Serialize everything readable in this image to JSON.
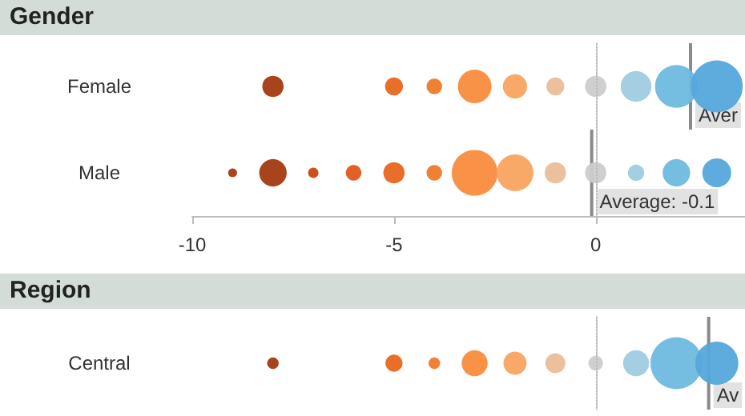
{
  "chart_data": [
    {
      "type": "bubble",
      "title": "Gender",
      "orientation": "horizontal",
      "categories": [
        "Female",
        "Male"
      ],
      "xlim": [
        -10,
        3.7
      ],
      "xticks": [
        -10,
        -5,
        0
      ],
      "marker": "circle",
      "series": [
        {
          "color": "#a33a10",
          "values": [
            null,
            -9
          ],
          "sizes": [
            null,
            0.03
          ]
        },
        {
          "color": "#a33a10",
          "values": [
            -8,
            -8
          ],
          "sizes": [
            0.17,
            0.28
          ]
        },
        {
          "color": "#c9470f",
          "values": [
            null,
            -7
          ],
          "sizes": [
            null,
            0.04
          ]
        },
        {
          "color": "#e0581a",
          "values": [
            null,
            -6
          ],
          "sizes": [
            null,
            0.09
          ]
        },
        {
          "color": "#e8661d",
          "values": [
            -5,
            -5
          ],
          "sizes": [
            0.12,
            0.17
          ]
        },
        {
          "color": "#ee7a2a",
          "values": [
            -4,
            -4
          ],
          "sizes": [
            0.09,
            0.09
          ]
        },
        {
          "color": "#f98c3d",
          "values": [
            -3,
            -3
          ],
          "sizes": [
            0.42,
            0.78
          ]
        },
        {
          "color": "#f8a460",
          "values": [
            -2,
            -2
          ],
          "sizes": [
            0.22,
            0.5
          ]
        },
        {
          "color": "#ebbd98",
          "values": [
            -1,
            -1
          ],
          "sizes": [
            0.12,
            0.17
          ]
        },
        {
          "color": "#cccccc",
          "values": [
            0,
            0
          ],
          "sizes": [
            0.17,
            0.17
          ]
        },
        {
          "color": "#9fcbe0",
          "values": [
            1,
            1
          ],
          "sizes": [
            0.35,
            0.1
          ]
        },
        {
          "color": "#6fb9e0",
          "values": [
            2,
            2
          ],
          "sizes": [
            0.68,
            0.28
          ]
        },
        {
          "color": "#55a7db",
          "values": [
            3,
            3
          ],
          "sizes": [
            1,
            0.31
          ]
        }
      ],
      "ref_lines": [
        {
          "axis": "x",
          "value": 0,
          "line_style": "dotted",
          "color": "#bbbbbb"
        },
        {
          "axis": "x",
          "value": 2.35,
          "label": "Aver",
          "color": "#8a8a8a"
        },
        {
          "axis": "x",
          "value": -0.1,
          "label": "Average: -0.1",
          "color": "#8a8a8a"
        }
      ]
    },
    {
      "type": "bubble",
      "title": "Region",
      "orientation": "horizontal",
      "categories": [
        "Central"
      ],
      "xlim": [
        -10,
        3.7
      ],
      "marker": "circle",
      "tick_labels": "y",
      "series": [
        {
          "color": "#a33a10",
          "values": [
            -8
          ],
          "sizes": [
            0.05
          ]
        },
        {
          "color": "#e8661d",
          "values": [
            -5
          ],
          "sizes": [
            0.11
          ]
        },
        {
          "color": "#ee7a2a",
          "values": [
            -4
          ],
          "sizes": [
            0.05
          ]
        },
        {
          "color": "#f98c3d",
          "values": [
            -3
          ],
          "sizes": [
            0.25
          ]
        },
        {
          "color": "#f8a460",
          "values": [
            -2
          ],
          "sizes": [
            0.2
          ]
        },
        {
          "color": "#ebbd98",
          "values": [
            -1
          ],
          "sizes": [
            0.15
          ]
        },
        {
          "color": "#cccccc",
          "values": [
            0
          ],
          "sizes": [
            0.08
          ]
        },
        {
          "color": "#9fcbe0",
          "values": [
            1
          ],
          "sizes": [
            0.25
          ]
        },
        {
          "color": "#6fb9e0",
          "values": [
            2
          ],
          "sizes": [
            1
          ]
        },
        {
          "color": "#55a7db",
          "values": [
            3
          ],
          "sizes": [
            0.69
          ]
        }
      ],
      "ref_lines": [
        {
          "axis": "x",
          "value": 0,
          "line_style": "dotted",
          "color": "#bbbbbb"
        },
        {
          "axis": "x",
          "value": 2.8,
          "label": "Av",
          "color": "#8a8a8a"
        }
      ]
    }
  ]
}
